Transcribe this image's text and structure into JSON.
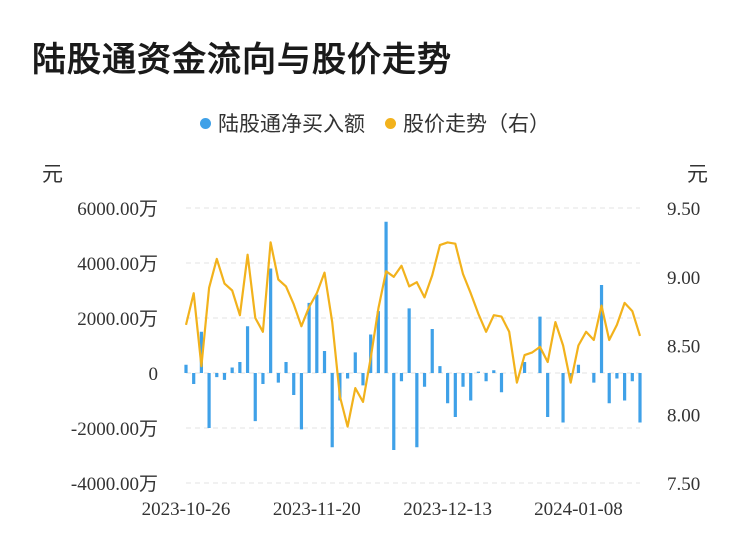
{
  "title": "陆股通资金流向与股价走势",
  "unit_left": "元",
  "unit_right": "元",
  "colors": {
    "bar": "#3fa1e8",
    "line": "#f2b21c",
    "grid": "#e3e3e3"
  },
  "chart_data": {
    "type": "bar+line",
    "legend": [
      {
        "label": "陆股通净买入额",
        "color": "#3fa1e8"
      },
      {
        "label": "股价走势（右）",
        "color": "#f2b21c"
      }
    ],
    "y_left": {
      "ticks": [
        "6000.00万",
        "4000.00万",
        "2000.00万",
        "0",
        "-2000.00万",
        "-4000.00万"
      ],
      "range": [
        -4000,
        6000
      ],
      "unit": "万"
    },
    "y_right": {
      "ticks": [
        "9.50",
        "9.00",
        "8.50",
        "8.00",
        "7.50"
      ],
      "range": [
        7.5,
        9.5
      ]
    },
    "x_tick_labels": [
      {
        "label": "2023-10-26",
        "date": "2023-10-26"
      },
      {
        "label": "2023-11-20",
        "date": "2023-11-20"
      },
      {
        "label": "2023-12-13",
        "date": "2023-12-13"
      },
      {
        "label": "2024-01-08",
        "date": "2024-01-08"
      }
    ],
    "series": [
      {
        "name": "陆股通净买入额",
        "kind": "bar",
        "axis": "left",
        "values": [
          {
            "x": "2023-10-26",
            "y": 300
          },
          {
            "x": "2023-10-27",
            "y": -400
          },
          {
            "x": "2023-10-30",
            "y": 1500
          },
          {
            "x": "2023-10-31",
            "y": -2000
          },
          {
            "x": "2023-11-01",
            "y": -150
          },
          {
            "x": "2023-11-02",
            "y": -250
          },
          {
            "x": "2023-11-03",
            "y": 200
          },
          {
            "x": "2023-11-06",
            "y": 400
          },
          {
            "x": "2023-11-07",
            "y": 1700
          },
          {
            "x": "2023-11-08",
            "y": -1750
          },
          {
            "x": "2023-11-09",
            "y": -400
          },
          {
            "x": "2023-11-10",
            "y": 3800
          },
          {
            "x": "2023-11-13",
            "y": -350
          },
          {
            "x": "2023-11-14",
            "y": 400
          },
          {
            "x": "2023-11-15",
            "y": -800
          },
          {
            "x": "2023-11-16",
            "y": -2050
          },
          {
            "x": "2023-11-17",
            "y": 2550
          },
          {
            "x": "2023-11-20",
            "y": 2850
          },
          {
            "x": "2023-11-21",
            "y": 800
          },
          {
            "x": "2023-11-22",
            "y": -2700
          },
          {
            "x": "2023-11-23",
            "y": -1000
          },
          {
            "x": "2023-11-24",
            "y": -200
          },
          {
            "x": "2023-11-27",
            "y": 750
          },
          {
            "x": "2023-11-28",
            "y": -450
          },
          {
            "x": "2023-11-29",
            "y": 1400
          },
          {
            "x": "2023-11-30",
            "y": 2250
          },
          {
            "x": "2023-12-01",
            "y": 5500
          },
          {
            "x": "2023-12-04",
            "y": -2800
          },
          {
            "x": "2023-12-05",
            "y": -300
          },
          {
            "x": "2023-12-06",
            "y": 2350
          },
          {
            "x": "2023-12-07",
            "y": -2700
          },
          {
            "x": "2023-12-08",
            "y": -500
          },
          {
            "x": "2023-12-11",
            "y": 1600
          },
          {
            "x": "2023-12-12",
            "y": 250
          },
          {
            "x": "2023-12-13",
            "y": -1100
          },
          {
            "x": "2023-12-14",
            "y": -1600
          },
          {
            "x": "2023-12-15",
            "y": -500
          },
          {
            "x": "2023-12-18",
            "y": -1000
          },
          {
            "x": "2023-12-19",
            "y": 50
          },
          {
            "x": "2023-12-20",
            "y": -300
          },
          {
            "x": "2023-12-21",
            "y": 100
          },
          {
            "x": "2023-12-22",
            "y": -700
          },
          {
            "x": "2023-12-25",
            "y": 0
          },
          {
            "x": "2023-12-26",
            "y": 0
          },
          {
            "x": "2023-12-27",
            "y": 400
          },
          {
            "x": "2023-12-28",
            "y": 0
          },
          {
            "x": "2023-12-29",
            "y": 2050
          },
          {
            "x": "2024-01-02",
            "y": -1600
          },
          {
            "x": "2024-01-03",
            "y": 0
          },
          {
            "x": "2024-01-04",
            "y": -1800
          },
          {
            "x": "2024-01-05",
            "y": -200
          },
          {
            "x": "2024-01-08",
            "y": 300
          },
          {
            "x": "2024-01-09",
            "y": 0
          },
          {
            "x": "2024-01-10",
            "y": -350
          },
          {
            "x": "2024-01-11",
            "y": 3200
          },
          {
            "x": "2024-01-12",
            "y": -1100
          },
          {
            "x": "2024-01-15",
            "y": -200
          },
          {
            "x": "2024-01-16",
            "y": -1000
          },
          {
            "x": "2024-01-17",
            "y": -300
          },
          {
            "x": "2024-01-18",
            "y": -1800
          }
        ]
      },
      {
        "name": "股价走势（右）",
        "kind": "line",
        "axis": "right",
        "values": [
          {
            "x": "2023-10-26",
            "y": 8.65
          },
          {
            "x": "2023-10-27",
            "y": 8.88
          },
          {
            "x": "2023-10-30",
            "y": 8.35
          },
          {
            "x": "2023-10-31",
            "y": 8.92
          },
          {
            "x": "2023-11-01",
            "y": 9.13
          },
          {
            "x": "2023-11-02",
            "y": 8.95
          },
          {
            "x": "2023-11-03",
            "y": 8.9
          },
          {
            "x": "2023-11-06",
            "y": 8.72
          },
          {
            "x": "2023-11-07",
            "y": 9.16
          },
          {
            "x": "2023-11-08",
            "y": 8.7
          },
          {
            "x": "2023-11-09",
            "y": 8.6
          },
          {
            "x": "2023-11-10",
            "y": 9.25
          },
          {
            "x": "2023-11-13",
            "y": 8.98
          },
          {
            "x": "2023-11-14",
            "y": 8.93
          },
          {
            "x": "2023-11-15",
            "y": 8.8
          },
          {
            "x": "2023-11-16",
            "y": 8.64
          },
          {
            "x": "2023-11-17",
            "y": 8.78
          },
          {
            "x": "2023-11-20",
            "y": 8.88
          },
          {
            "x": "2023-11-21",
            "y": 9.03
          },
          {
            "x": "2023-11-22",
            "y": 8.67
          },
          {
            "x": "2023-11-23",
            "y": 8.13
          },
          {
            "x": "2023-11-24",
            "y": 7.91
          },
          {
            "x": "2023-11-27",
            "y": 8.19
          },
          {
            "x": "2023-11-28",
            "y": 8.09
          },
          {
            "x": "2023-11-29",
            "y": 8.41
          },
          {
            "x": "2023-11-30",
            "y": 8.77
          },
          {
            "x": "2023-12-01",
            "y": 9.04
          },
          {
            "x": "2023-12-04",
            "y": 9.0
          },
          {
            "x": "2023-12-05",
            "y": 9.08
          },
          {
            "x": "2023-12-06",
            "y": 8.93
          },
          {
            "x": "2023-12-07",
            "y": 8.96
          },
          {
            "x": "2023-12-08",
            "y": 8.85
          },
          {
            "x": "2023-12-11",
            "y": 9.01
          },
          {
            "x": "2023-12-12",
            "y": 9.23
          },
          {
            "x": "2023-12-13",
            "y": 9.25
          },
          {
            "x": "2023-12-14",
            "y": 9.24
          },
          {
            "x": "2023-12-15",
            "y": 9.02
          },
          {
            "x": "2023-12-18",
            "y": 8.88
          },
          {
            "x": "2023-12-19",
            "y": 8.73
          },
          {
            "x": "2023-12-20",
            "y": 8.6
          },
          {
            "x": "2023-12-21",
            "y": 8.72
          },
          {
            "x": "2023-12-22",
            "y": 8.71
          },
          {
            "x": "2023-12-25",
            "y": 8.6
          },
          {
            "x": "2023-12-26",
            "y": 8.23
          },
          {
            "x": "2023-12-27",
            "y": 8.43
          },
          {
            "x": "2023-12-28",
            "y": 8.45
          },
          {
            "x": "2023-12-29",
            "y": 8.49
          },
          {
            "x": "2024-01-02",
            "y": 8.38
          },
          {
            "x": "2024-01-03",
            "y": 8.67
          },
          {
            "x": "2024-01-04",
            "y": 8.5
          },
          {
            "x": "2024-01-05",
            "y": 8.23
          },
          {
            "x": "2024-01-08",
            "y": 8.5
          },
          {
            "x": "2024-01-09",
            "y": 8.6
          },
          {
            "x": "2024-01-10",
            "y": 8.54
          },
          {
            "x": "2024-01-11",
            "y": 8.79
          },
          {
            "x": "2024-01-12",
            "y": 8.54
          },
          {
            "x": "2024-01-15",
            "y": 8.65
          },
          {
            "x": "2024-01-16",
            "y": 8.81
          },
          {
            "x": "2024-01-17",
            "y": 8.75
          },
          {
            "x": "2024-01-18",
            "y": 8.57
          }
        ]
      }
    ],
    "grid": true,
    "legend_position": "top-center"
  }
}
